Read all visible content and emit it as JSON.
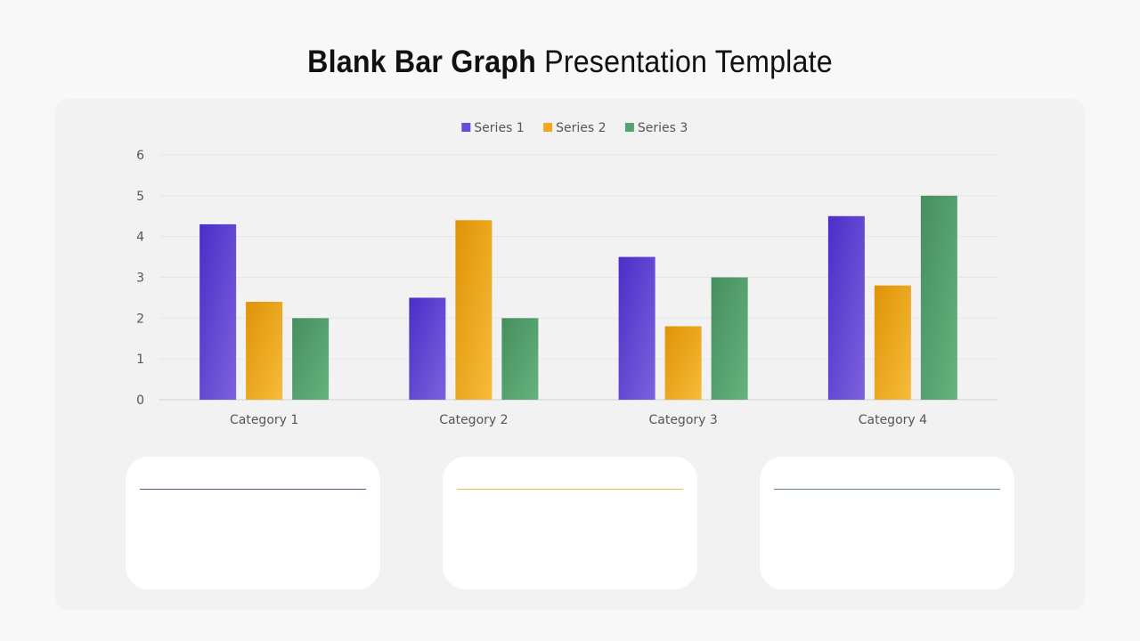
{
  "slide": {
    "title_bold": "Blank Bar Graph",
    "title_regular": " Presentation Template"
  },
  "colors": {
    "series1": "#6a4bd8",
    "series2": "#f0a81e",
    "series3": "#55a46e",
    "rule1": "#5b5788",
    "rule2": "#e6c24a",
    "rule3": "#5f8a72"
  },
  "chart_data": {
    "type": "bar",
    "categories": [
      "Category 1",
      "Category 2",
      "Category 3",
      "Category 4"
    ],
    "series": [
      {
        "name": "Series 1",
        "values": [
          4.3,
          2.5,
          3.5,
          4.5
        ]
      },
      {
        "name": "Series 2",
        "values": [
          2.4,
          4.4,
          1.8,
          2.8
        ]
      },
      {
        "name": "Series 3",
        "values": [
          2.0,
          2.0,
          3.0,
          5.0
        ]
      }
    ],
    "ylim": [
      0,
      6
    ],
    "yticks": [
      0,
      1,
      2,
      3,
      4,
      5,
      6
    ],
    "grid": true,
    "legend": "top-center"
  }
}
